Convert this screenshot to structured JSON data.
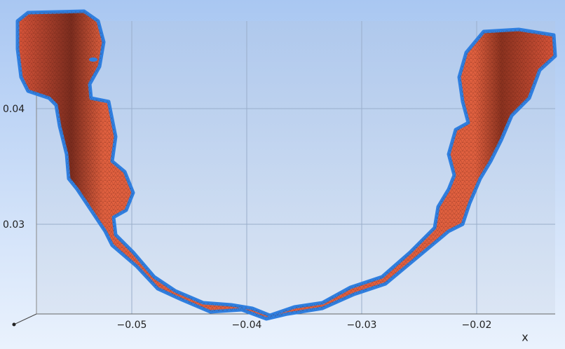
{
  "axes": {
    "x_ticks": [
      "−0.05",
      "−0.04",
      "−0.03",
      "−0.02"
    ],
    "y_ticks": [
      "0.04",
      "0.03"
    ],
    "x_label": "x"
  }
}
